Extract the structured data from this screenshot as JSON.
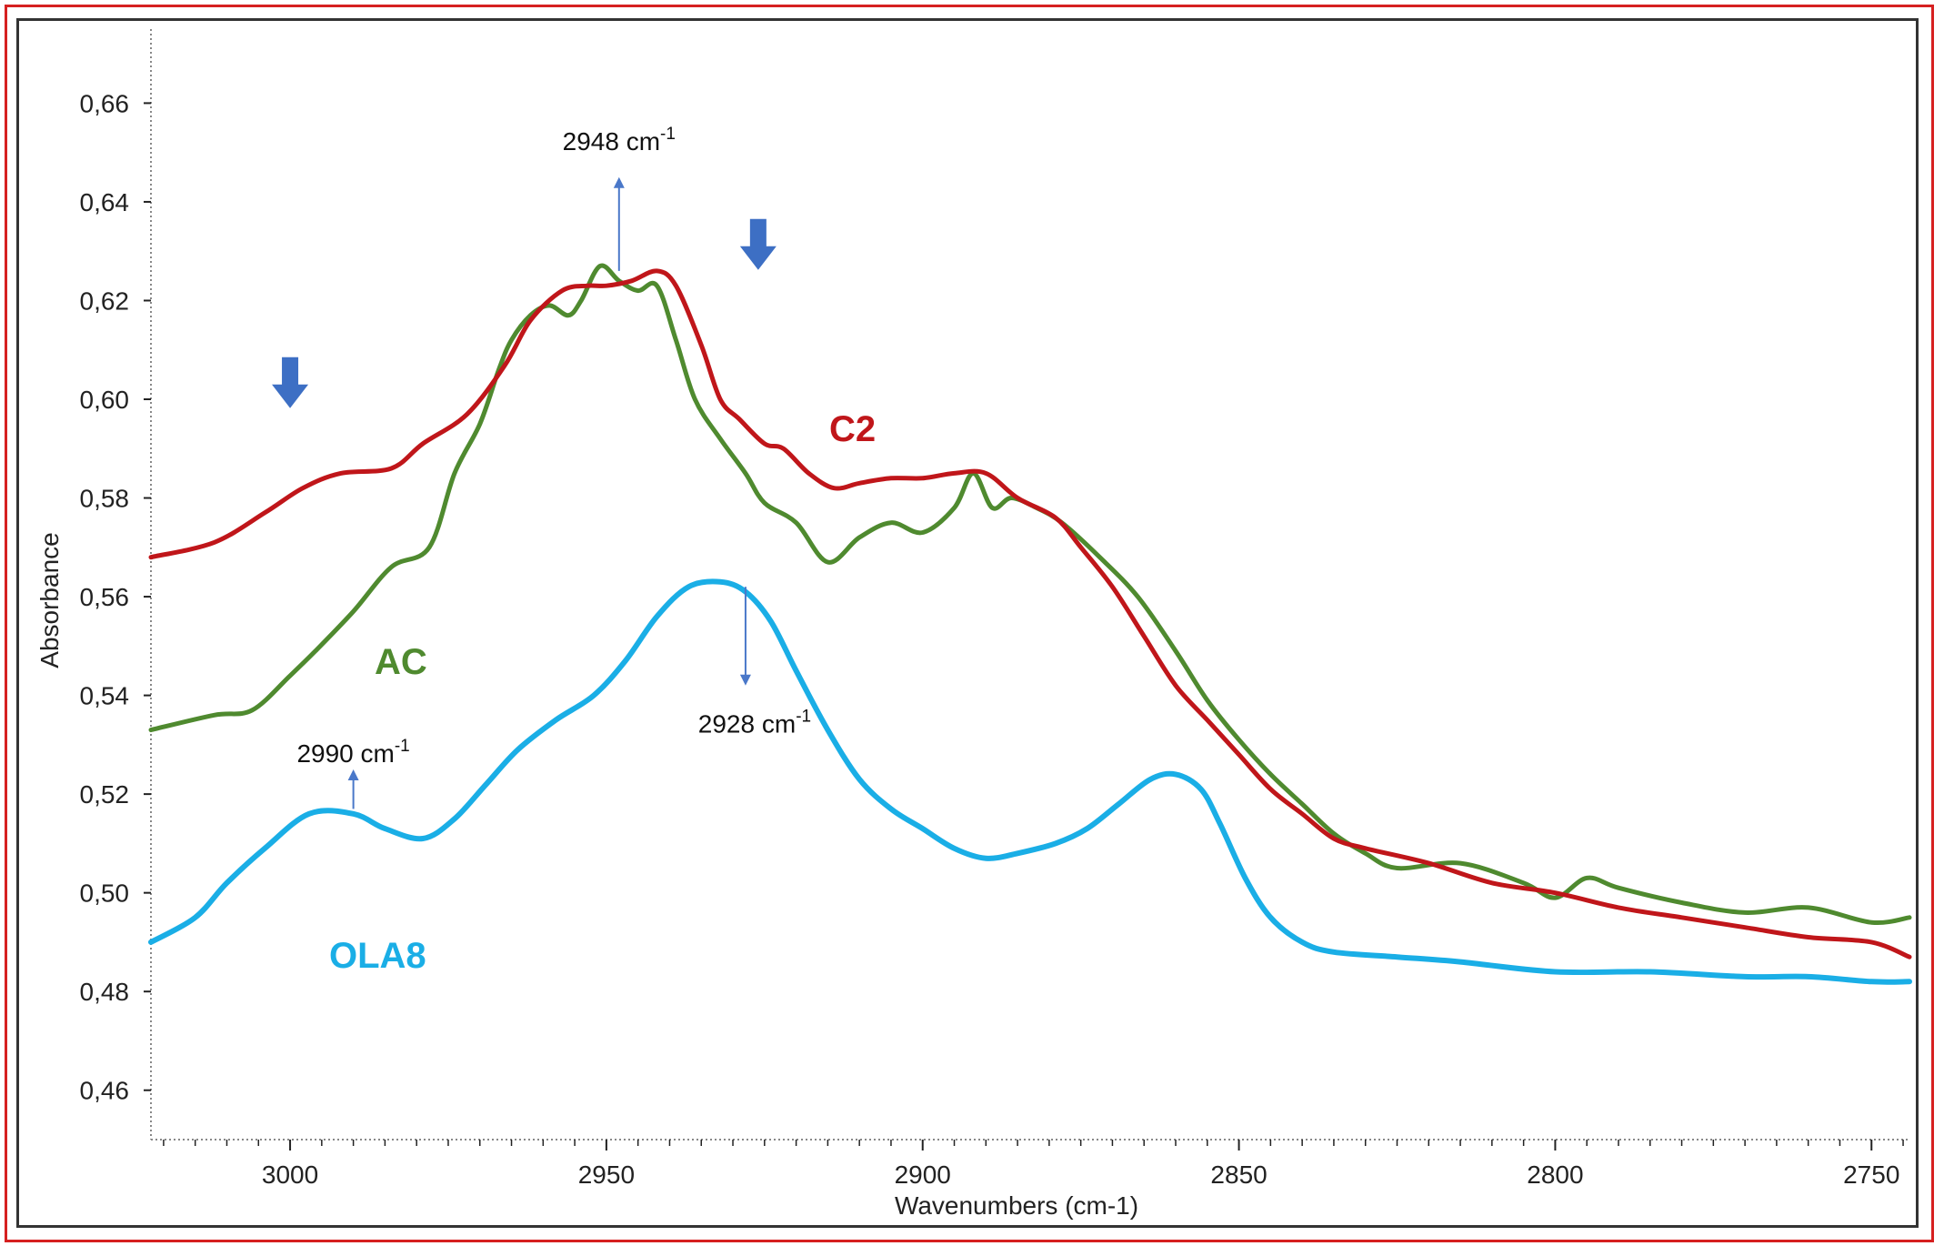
{
  "colors": {
    "OLA8": "#1aaee6",
    "AC": "#4f8a2f",
    "C2": "#c0161a",
    "down_arrow": "#3d6fc4",
    "annotation_arrow": "#4a78c9",
    "axis": "#222222"
  },
  "chart_data": {
    "type": "line",
    "title": "",
    "xlabel": "Wavenumbers (cm-1)",
    "ylabel": "Absorbance",
    "xlim": [
      3022,
      2744
    ],
    "ylim": [
      0.45,
      0.675
    ],
    "x_ticks": [
      3000,
      2950,
      2900,
      2850,
      2800,
      2750
    ],
    "x_tick_labels": [
      "3000",
      "2950",
      "2900",
      "2850",
      "2800",
      "2750"
    ],
    "y_ticks": [
      0.46,
      0.48,
      0.5,
      0.52,
      0.54,
      0.56,
      0.58,
      0.6,
      0.62,
      0.64,
      0.66
    ],
    "y_tick_labels": [
      "0,46",
      "0,48",
      "0,50",
      "0,52",
      "0,54",
      "0,56",
      "0,58",
      "0,60",
      "0,62",
      "0,64",
      "0,66"
    ],
    "series": [
      {
        "name": "C2",
        "label": "C2",
        "x": [
          3022,
          3012,
          3004,
          2998,
          2992,
          2984,
          2979,
          2972,
          2966,
          2962,
          2957,
          2953,
          2950,
          2946,
          2942,
          2939,
          2935,
          2932,
          2929,
          2925,
          2922,
          2918,
          2914,
          2910,
          2905,
          2900,
          2895,
          2890,
          2885,
          2879,
          2875,
          2870,
          2865,
          2860,
          2855,
          2850,
          2845,
          2840,
          2835,
          2830,
          2820,
          2810,
          2800,
          2790,
          2780,
          2770,
          2760,
          2750,
          2744
        ],
        "values": [
          0.568,
          0.571,
          0.577,
          0.582,
          0.585,
          0.586,
          0.591,
          0.597,
          0.607,
          0.616,
          0.622,
          0.623,
          0.623,
          0.624,
          0.626,
          0.623,
          0.611,
          0.6,
          0.596,
          0.591,
          0.59,
          0.585,
          0.582,
          0.583,
          0.584,
          0.584,
          0.585,
          0.585,
          0.58,
          0.576,
          0.57,
          0.562,
          0.552,
          0.542,
          0.535,
          0.528,
          0.521,
          0.516,
          0.511,
          0.509,
          0.506,
          0.502,
          0.5,
          0.497,
          0.495,
          0.493,
          0.491,
          0.49,
          0.487
        ]
      },
      {
        "name": "AC",
        "label": "AC",
        "x": [
          3022,
          3012,
          3006,
          3000,
          2996,
          2990,
          2984,
          2978,
          2974,
          2970,
          2967,
          2965,
          2962,
          2959,
          2956,
          2954,
          2951,
          2948,
          2945,
          2942,
          2939,
          2936,
          2932,
          2928,
          2925,
          2920,
          2915,
          2910,
          2905,
          2900,
          2895,
          2892,
          2889,
          2886,
          2882,
          2878,
          2872,
          2866,
          2860,
          2855,
          2850,
          2845,
          2840,
          2835,
          2830,
          2825,
          2815,
          2805,
          2800,
          2795,
          2790,
          2780,
          2770,
          2760,
          2750,
          2744
        ],
        "values": [
          0.533,
          0.536,
          0.537,
          0.544,
          0.549,
          0.557,
          0.566,
          0.57,
          0.585,
          0.595,
          0.606,
          0.612,
          0.617,
          0.619,
          0.617,
          0.62,
          0.627,
          0.624,
          0.622,
          0.623,
          0.612,
          0.6,
          0.592,
          0.585,
          0.579,
          0.575,
          0.567,
          0.572,
          0.575,
          0.573,
          0.578,
          0.585,
          0.578,
          0.58,
          0.578,
          0.575,
          0.568,
          0.56,
          0.549,
          0.539,
          0.531,
          0.524,
          0.518,
          0.512,
          0.508,
          0.505,
          0.506,
          0.502,
          0.499,
          0.503,
          0.501,
          0.498,
          0.496,
          0.497,
          0.494,
          0.495
        ]
      },
      {
        "name": "OLA8",
        "label": "OLA8",
        "x": [
          3022,
          3015,
          3010,
          3004,
          2997,
          2990,
          2985,
          2979,
          2974,
          2969,
          2964,
          2958,
          2952,
          2947,
          2942,
          2937,
          2932,
          2928,
          2924,
          2920,
          2915,
          2910,
          2905,
          2900,
          2895,
          2890,
          2885,
          2879,
          2874,
          2869,
          2864,
          2860,
          2856,
          2853,
          2849,
          2845,
          2840,
          2835,
          2825,
          2815,
          2800,
          2785,
          2770,
          2760,
          2750,
          2744
        ],
        "values": [
          0.49,
          0.495,
          0.502,
          0.509,
          0.516,
          0.516,
          0.513,
          0.511,
          0.515,
          0.522,
          0.529,
          0.535,
          0.54,
          0.547,
          0.556,
          0.562,
          0.563,
          0.561,
          0.555,
          0.545,
          0.533,
          0.523,
          0.517,
          0.513,
          0.509,
          0.507,
          0.508,
          0.51,
          0.513,
          0.518,
          0.523,
          0.524,
          0.521,
          0.514,
          0.503,
          0.495,
          0.49,
          0.488,
          0.487,
          0.486,
          0.484,
          0.484,
          0.483,
          0.483,
          0.482,
          0.482
        ]
      }
    ],
    "annotations": [
      {
        "text": "2948 cm",
        "sup": "-1",
        "x": 2948,
        "y_from": 0.626,
        "y_to": 0.645,
        "direction": "up"
      },
      {
        "text": "2928 cm",
        "sup": "-1",
        "x": 2928,
        "y_from": 0.562,
        "y_to": 0.542,
        "direction": "down"
      },
      {
        "text": "2990 cm",
        "sup": "-1",
        "x": 2990,
        "y_from": 0.517,
        "y_to": 0.525,
        "direction": "up"
      }
    ],
    "markers": [
      {
        "name": "down-arrow-3000",
        "x": 3000,
        "y": 0.603
      },
      {
        "name": "down-arrow-2926",
        "x": 2926,
        "y": 0.631
      }
    ]
  }
}
